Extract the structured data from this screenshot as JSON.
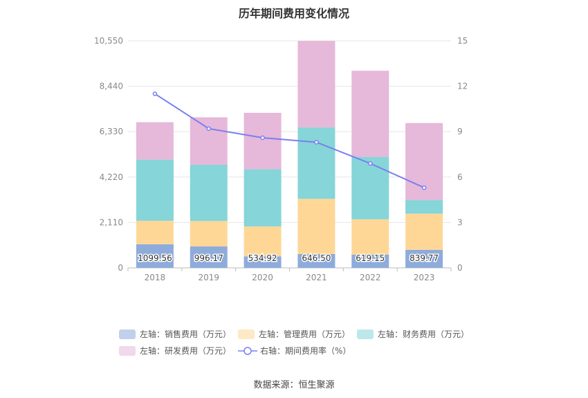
{
  "title": "历年期间费用变化情况",
  "source": "数据来源：恒生聚源",
  "chart_data": {
    "type": "bar",
    "stacked": true,
    "categories": [
      "2018",
      "2019",
      "2020",
      "2021",
      "2022",
      "2023"
    ],
    "left_axis": {
      "ticks": [
        "0",
        "2,110",
        "4,220",
        "6,330",
        "8,440",
        "10,550"
      ],
      "ylim": [
        0,
        10550
      ]
    },
    "right_axis": {
      "ticks": [
        "0",
        "3",
        "6",
        "9",
        "12",
        "15"
      ],
      "ylim": [
        0,
        15
      ]
    },
    "series": [
      {
        "name": "左轴：销售费用（万元）",
        "color": "#8eacdb",
        "values": [
          1099.56,
          996.17,
          534.92,
          646.5,
          619.15,
          839.77
        ],
        "labels": [
          "1099.56",
          "996.17",
          "534.92",
          "646.50",
          "619.15",
          "839.77"
        ]
      },
      {
        "name": "左轴：管理费用（万元）",
        "color": "#fed797",
        "values": [
          1090,
          1180,
          1390,
          2560,
          1640,
          1680
        ]
      },
      {
        "name": "左轴：财务费用（万元）",
        "color": "#86d5d8",
        "values": [
          2840,
          2620,
          2660,
          3320,
          2900,
          630
        ]
      },
      {
        "name": "左轴：研发费用（万元）",
        "color": "#e6b8d9",
        "values": [
          1740,
          2200,
          2620,
          4020,
          4000,
          3580
        ]
      }
    ],
    "line": {
      "name": "右轴：期间费用率（%）",
      "color": "#7a7ef0",
      "values": [
        11.5,
        9.2,
        8.6,
        8.3,
        6.9,
        5.3
      ]
    }
  }
}
